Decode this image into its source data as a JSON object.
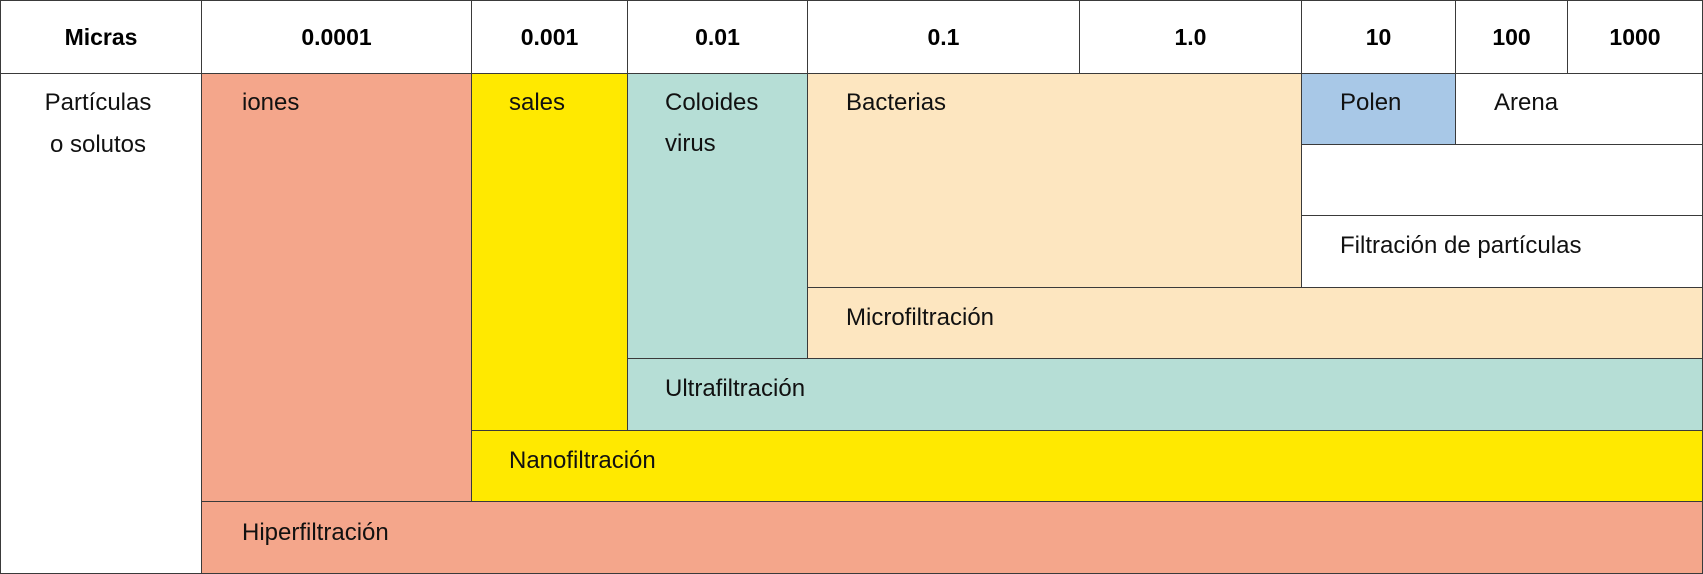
{
  "colors": {
    "salmon": "#f4a68b",
    "yellow": "#ffe900",
    "teal": "#b6ded6",
    "peach": "#fde6c0",
    "blue": "#a8c8e7",
    "border": "#3a3a3a"
  },
  "header": {
    "label": "Micras",
    "scale": [
      "0.0001",
      "0.001",
      "0.01",
      "0.1",
      "1.0",
      "10",
      "100",
      "1000"
    ]
  },
  "row_label": {
    "line1": "Partículas",
    "line2": "o solutos"
  },
  "particles": {
    "iones": "iones",
    "sales": "sales",
    "coloides": "Coloides",
    "virus": "virus",
    "bacterias": "Bacterias",
    "polen": "Polen",
    "arena": "Arena"
  },
  "filtration": {
    "particulas": "Filtración de partículas",
    "micro": "Microfiltración",
    "ultra": "Ultrafiltración",
    "nano": "Nanofiltración",
    "hiper": "Hiperfiltración"
  }
}
